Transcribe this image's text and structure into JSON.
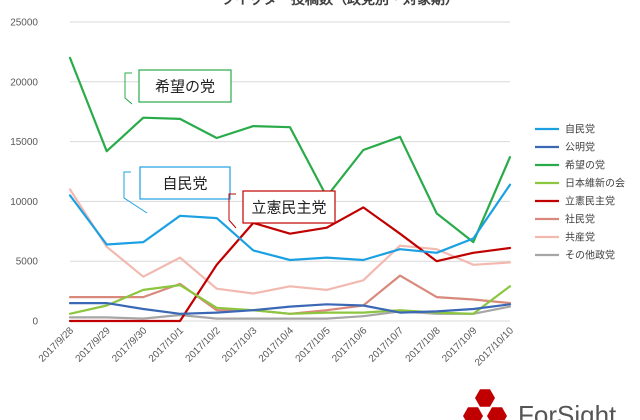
{
  "chart_data": {
    "type": "line",
    "title": "ツイッター投稿数（政党別・対象期）",
    "xlabel": "",
    "ylabel": "",
    "ylim": [
      0,
      25000
    ],
    "yticks": [
      0,
      5000,
      10000,
      15000,
      20000,
      25000
    ],
    "categories": [
      "2017/9/28",
      "2017/9/29",
      "2017/9/30",
      "2017/10/1",
      "2017/10/2",
      "2017/10/3",
      "2017/10/4",
      "2017/10/5",
      "2017/10/6",
      "2017/10/7",
      "2017/10/8",
      "2017/10/9",
      "2017/10/10"
    ],
    "grid": true,
    "legend": "right",
    "series": [
      {
        "name": "自民党",
        "color": "#1ba1e2",
        "values": [
          10500,
          6400,
          6600,
          8800,
          8600,
          5900,
          5100,
          5300,
          5100,
          6000,
          5700,
          6900,
          11400
        ]
      },
      {
        "name": "公明党",
        "color": "#3b68b5",
        "values": [
          1500,
          1500,
          1000,
          600,
          700,
          900,
          1200,
          1400,
          1300,
          700,
          800,
          1000,
          1400
        ]
      },
      {
        "name": "希望の党",
        "color": "#2aab4a",
        "values": [
          22000,
          14200,
          17000,
          16900,
          15300,
          16300,
          16200,
          10400,
          14300,
          15400,
          9000,
          6600,
          13700
        ]
      },
      {
        "name": "日本維新の会",
        "color": "#8cc63f",
        "values": [
          600,
          1300,
          2600,
          3000,
          1100,
          900,
          600,
          700,
          700,
          900,
          700,
          600,
          2900
        ]
      },
      {
        "name": "立憲民主党",
        "color": "#c00000",
        "values": [
          0,
          0,
          0,
          0,
          4700,
          8200,
          7300,
          7800,
          9500,
          7300,
          5000,
          5700,
          6100
        ]
      },
      {
        "name": "社民党",
        "color": "#d9897b",
        "values": [
          2000,
          2000,
          2000,
          3100,
          900,
          900,
          600,
          900,
          1300,
          3800,
          2000,
          1800,
          1500
        ]
      },
      {
        "name": "共産党",
        "color": "#f2b9b0",
        "values": [
          11000,
          6200,
          3700,
          5300,
          2700,
          2300,
          2900,
          2600,
          3400,
          6300,
          6000,
          4700,
          4900
        ]
      },
      {
        "name": "その他政党",
        "color": "#a6a6a6",
        "values": [
          300,
          300,
          200,
          500,
          200,
          200,
          200,
          200,
          400,
          800,
          600,
          600,
          1200
        ]
      }
    ],
    "annotations": [
      {
        "text": "希望の党",
        "series": "希望の党"
      },
      {
        "text": "自民党",
        "series": "自民党"
      },
      {
        "text": "立憲民主党",
        "series": "立憲民主党"
      }
    ]
  },
  "logo": {
    "text": "ForSight",
    "color": "#c00000"
  }
}
